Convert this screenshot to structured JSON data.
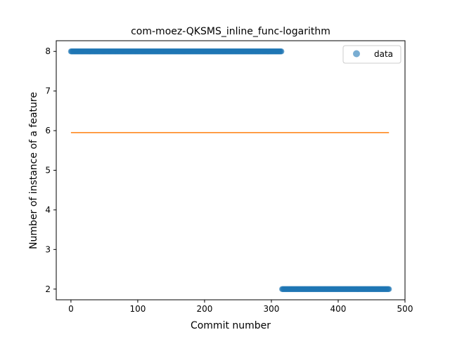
{
  "chart_data": {
    "type": "scatter",
    "title": "com-moez-QKSMS_inline_func-logarithm",
    "xlabel": "Commit number",
    "ylabel": "Number of instance of a feature",
    "xlim": [
      -22,
      500
    ],
    "ylim": [
      1.73,
      8.27
    ],
    "xticks": [
      0,
      100,
      200,
      300,
      400,
      500
    ],
    "yticks": [
      2,
      3,
      4,
      5,
      6,
      7,
      8
    ],
    "grid": false,
    "legend": {
      "placement": "top-right",
      "entries": [
        "data"
      ]
    },
    "series": [
      {
        "name": "data",
        "kind": "points",
        "color": "#1f77b4",
        "segments": [
          {
            "x_start": 0,
            "x_end": 315,
            "step": 1,
            "y": 8
          },
          {
            "x_start": 316,
            "x_end": 476,
            "step": 1,
            "y": 2
          }
        ]
      },
      {
        "kind": "line",
        "color": "#ff7f0e",
        "x": [
          0,
          476
        ],
        "y": [
          5.95,
          5.95
        ]
      }
    ]
  }
}
